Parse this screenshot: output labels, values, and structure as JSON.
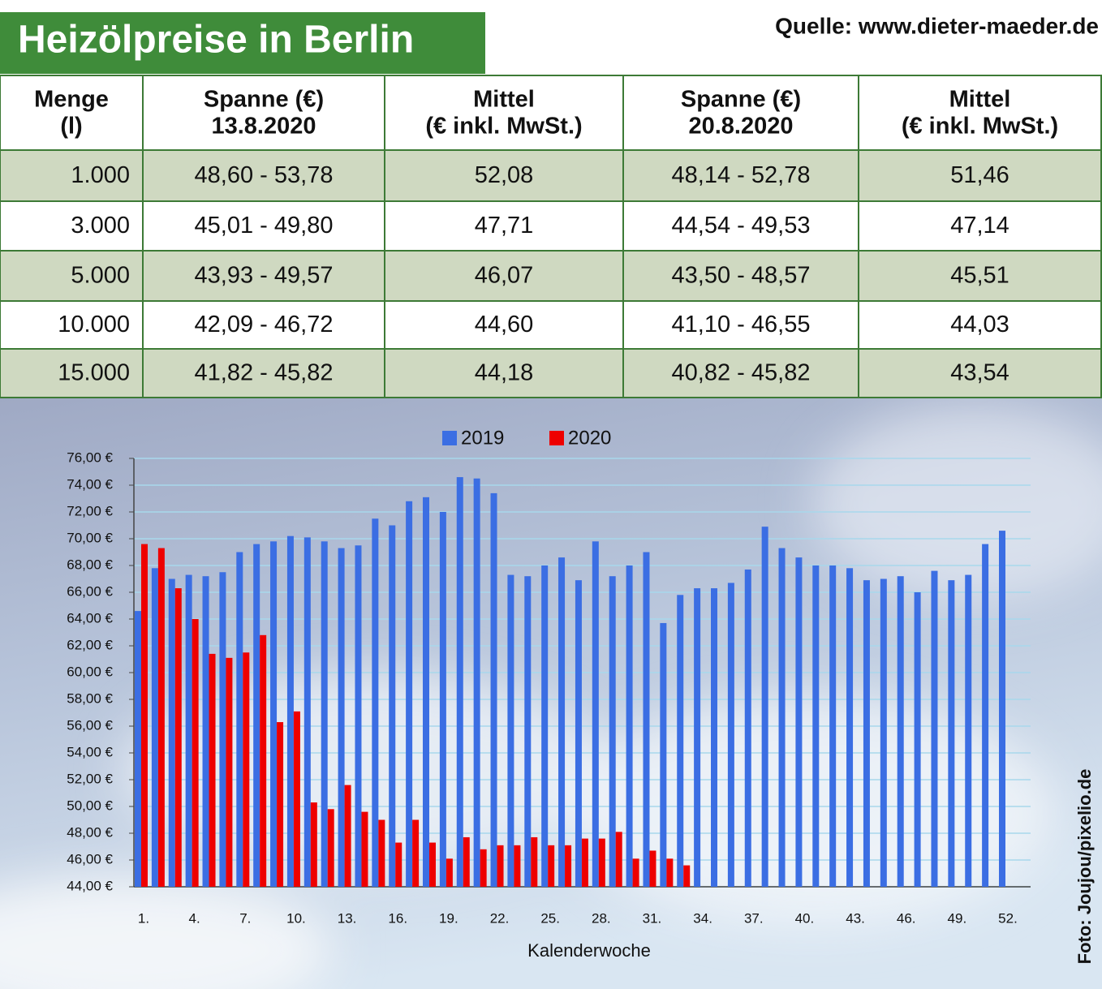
{
  "header": {
    "title": "Heizölpreise in Berlin",
    "source": "Quelle: www.dieter-maeder.de"
  },
  "table": {
    "header": [
      [
        "Menge",
        "(l)"
      ],
      [
        "Spanne (€)",
        "13.8.2020"
      ],
      [
        "Mittel",
        "(€ inkl. MwSt.)"
      ],
      [
        "Spanne (€)",
        "20.8.2020"
      ],
      [
        "Mittel",
        "(€ inkl. MwSt.)"
      ]
    ],
    "rows": [
      [
        "1.000",
        "48,60 - 53,78",
        "52,08",
        "48,14 - 52,78",
        "51,46"
      ],
      [
        "3.000",
        "45,01 - 49,80",
        "47,71",
        "44,54 - 49,53",
        "47,14"
      ],
      [
        "5.000",
        "43,93 - 49,57",
        "46,07",
        "43,50 - 48,57",
        "45,51"
      ],
      [
        "10.000",
        "42,09 - 46,72",
        "44,60",
        "41,10 - 46,55",
        "44,03"
      ],
      [
        "15.000",
        "41,82 - 45,82",
        "44,18",
        "40,82 - 45,82",
        "43,54"
      ]
    ]
  },
  "chart_data": {
    "type": "bar",
    "x_label": "Kalenderwoche",
    "credit": "Foto: Joujou/pixelio.de",
    "categories": [
      "1.",
      null,
      null,
      "4.",
      null,
      null,
      "7.",
      null,
      null,
      "10.",
      null,
      null,
      "13.",
      null,
      null,
      "16.",
      null,
      null,
      "19.",
      null,
      null,
      "22.",
      null,
      null,
      "25.",
      null,
      null,
      "28.",
      null,
      null,
      "31.",
      null,
      null,
      "34.",
      null,
      null,
      "37.",
      null,
      null,
      "40.",
      null,
      null,
      "43.",
      null,
      null,
      "46.",
      null,
      null,
      "49.",
      null,
      null,
      "52."
    ],
    "series": [
      {
        "name": "2019",
        "color": "#3b6ee3",
        "values": [
          64.6,
          67.8,
          67.0,
          67.3,
          67.2,
          67.5,
          69.0,
          69.6,
          69.8,
          70.2,
          70.1,
          69.8,
          69.3,
          69.5,
          71.5,
          71.0,
          72.8,
          73.1,
          72.0,
          74.6,
          74.5,
          73.4,
          67.3,
          67.2,
          68.0,
          68.6,
          66.9,
          69.8,
          67.2,
          68.0,
          69.0,
          63.7,
          65.8,
          66.3,
          66.3,
          66.7,
          67.7,
          70.9,
          69.3,
          68.6,
          68.0,
          68.0,
          67.8,
          66.9,
          67.0,
          67.2,
          66.0,
          67.6,
          66.9,
          67.3,
          69.6,
          70.6
        ]
      },
      {
        "name": "2020",
        "color": "#ee0000",
        "values": [
          69.6,
          69.3,
          66.3,
          64.0,
          61.4,
          61.1,
          61.5,
          62.8,
          56.3,
          57.1,
          50.3,
          49.8,
          51.6,
          49.6,
          49.0,
          47.3,
          49.0,
          47.3,
          46.1,
          47.7,
          46.8,
          47.1,
          47.1,
          47.7,
          47.1,
          47.1,
          47.6,
          47.6,
          48.1,
          46.1,
          46.7,
          46.1,
          45.6,
          null,
          null,
          null,
          null,
          null,
          null,
          null,
          null,
          null,
          null,
          null,
          null,
          null,
          null,
          null,
          null,
          null,
          null,
          null
        ]
      }
    ],
    "ylim": [
      44,
      76
    ],
    "yticks": [
      {
        "value": 44,
        "label": "44,00 €"
      },
      {
        "value": 46,
        "label": "46,00 €"
      },
      {
        "value": 48,
        "label": "48,00 €"
      },
      {
        "value": 50,
        "label": "50,00 €"
      },
      {
        "value": 52,
        "label": "52,00 €"
      },
      {
        "value": 54,
        "label": "54,00 €"
      },
      {
        "value": 56,
        "label": "56,00 €"
      },
      {
        "value": 58,
        "label": "58,00 €"
      },
      {
        "value": 60,
        "label": "60,00 €"
      },
      {
        "value": 62,
        "label": "62,00 €"
      },
      {
        "value": 64,
        "label": "64,00 €"
      },
      {
        "value": 66,
        "label": "66,00 €"
      },
      {
        "value": 68,
        "label": "68,00 €"
      },
      {
        "value": 70,
        "label": "70,00 €"
      },
      {
        "value": 72,
        "label": "72,00 €"
      },
      {
        "value": 74,
        "label": "74,00 €"
      },
      {
        "value": 76,
        "label": "76,00 €"
      }
    ],
    "grid": true,
    "legend": "top"
  }
}
